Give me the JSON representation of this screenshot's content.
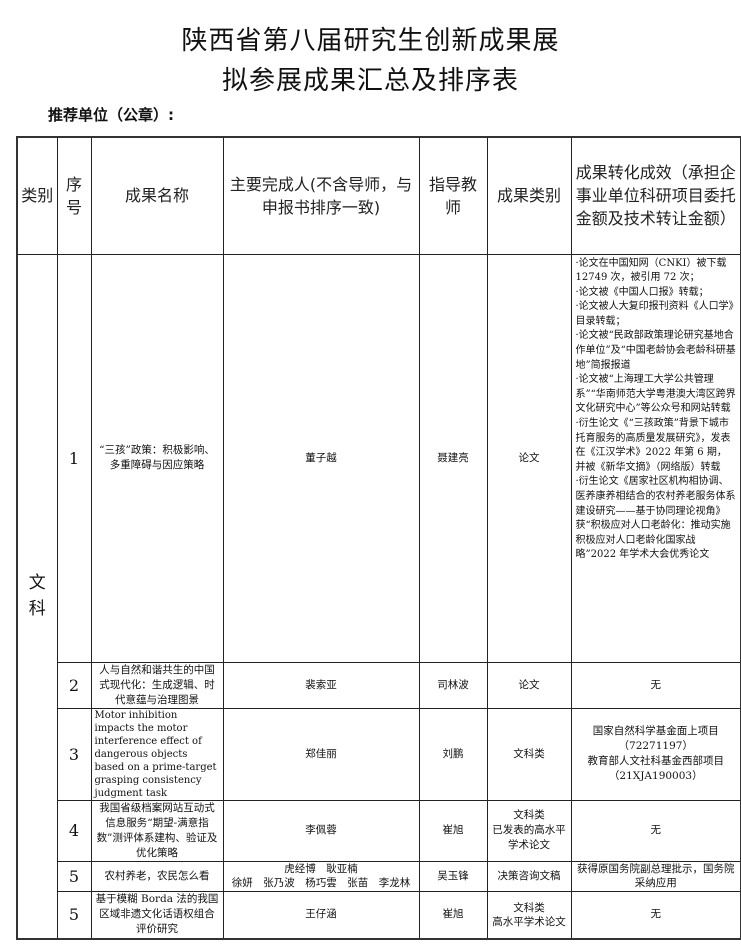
{
  "title_line1": "陕西省第八届研究生创新成果展",
  "title_line2": "拟参展成果汇总及排序表",
  "recommend_unit_label": "推荐单位（公章）:",
  "headers": {
    "category": "类别",
    "index": "序号",
    "name": "成果名称",
    "authors": "主要完成人(不含导师，与申报书排序一致)",
    "advisor": "指导教师",
    "type": "成果类别",
    "impact": "成果转化成效（承担企事业单位科研项目委托金额及技术转让金额）"
  },
  "category": "文科",
  "rows": [
    {
      "index": "1",
      "name": "“三孩”政策：积极影响、多重障碍与因应策略",
      "authors": "董子越",
      "advisor": "聂建亮",
      "type": "论文",
      "impact_items": [
        "·论文在中国知网（CNKI）被下载 12749 次，被引用 72 次；",
        "·论文被《中国人口报》转载；",
        "·论文被人大复印报刊资料《人口学》目录转载；",
        "·论文被“民政部政策理论研究基地合作单位”及“中国老龄协会老龄科研基地”简报报道",
        "·论文被“上海理工大学公共管理系”“华南师范大学粤港澳大湾区跨界文化研究中心”等公众号和网站转载",
        "·衍生论文《“三孩政策”背景下城市托育服务的高质量发展研究》，发表在《江汉学术》2022 年第 6 期，并被《新华文摘》（网络版）转载",
        "·衍生论文《居家社区机构相协调、医养康养相结合的农村养老服务体系建设研究——基于协同理论视角》获“积极应对人口老龄化：推动实施积极应对人口老龄化国家战略”2022 年学术大会优秀论文"
      ]
    },
    {
      "index": "2",
      "name": "人与自然和谐共生的中国式现代化：生成逻辑、时代意蕴与治理图景",
      "authors": "裴索亚",
      "advisor": "司林波",
      "type": "论文",
      "impact": "无"
    },
    {
      "index": "3",
      "name": "Motor inhibition impacts the motor interference effect of dangerous objects based on a prime-target grasping consistency judgment task",
      "authors": "郑佳丽",
      "advisor": "刘鹏",
      "type": "文科类",
      "impact_line1": "国家自然科学基金面上项目（72271197）",
      "impact_line2": "教育部人文社科基金西部项目（21XJA190003）"
    },
    {
      "index": "4",
      "name": "我国省级档案网站互动式信息服务“期望-满意指数”测评体系建构、验证及优化策略",
      "authors": "李佩蓉",
      "advisor": "崔旭",
      "type_line1": "文科类",
      "type_line2": "已发表的高水平学术论文",
      "impact": "无"
    },
    {
      "index": "5",
      "name": "农村养老，农民怎么看",
      "authors_line1": "虎经博　耿亚楠",
      "authors_line2": "徐妍　张乃波　杨巧雲　张苗　李龙林",
      "advisor": "吴玉锋",
      "type": "决策咨询文稿",
      "impact": "获得原国务院副总理批示，国务院采纳应用"
    },
    {
      "index": "5",
      "name": "基于模糊 Borda 法的我国区域非遗文化话语权组合评价研究",
      "authors": "王仔涵",
      "advisor": "崔旭",
      "type_line1": "文科类",
      "type_line2": "高水平学术论文",
      "impact": "无"
    }
  ]
}
